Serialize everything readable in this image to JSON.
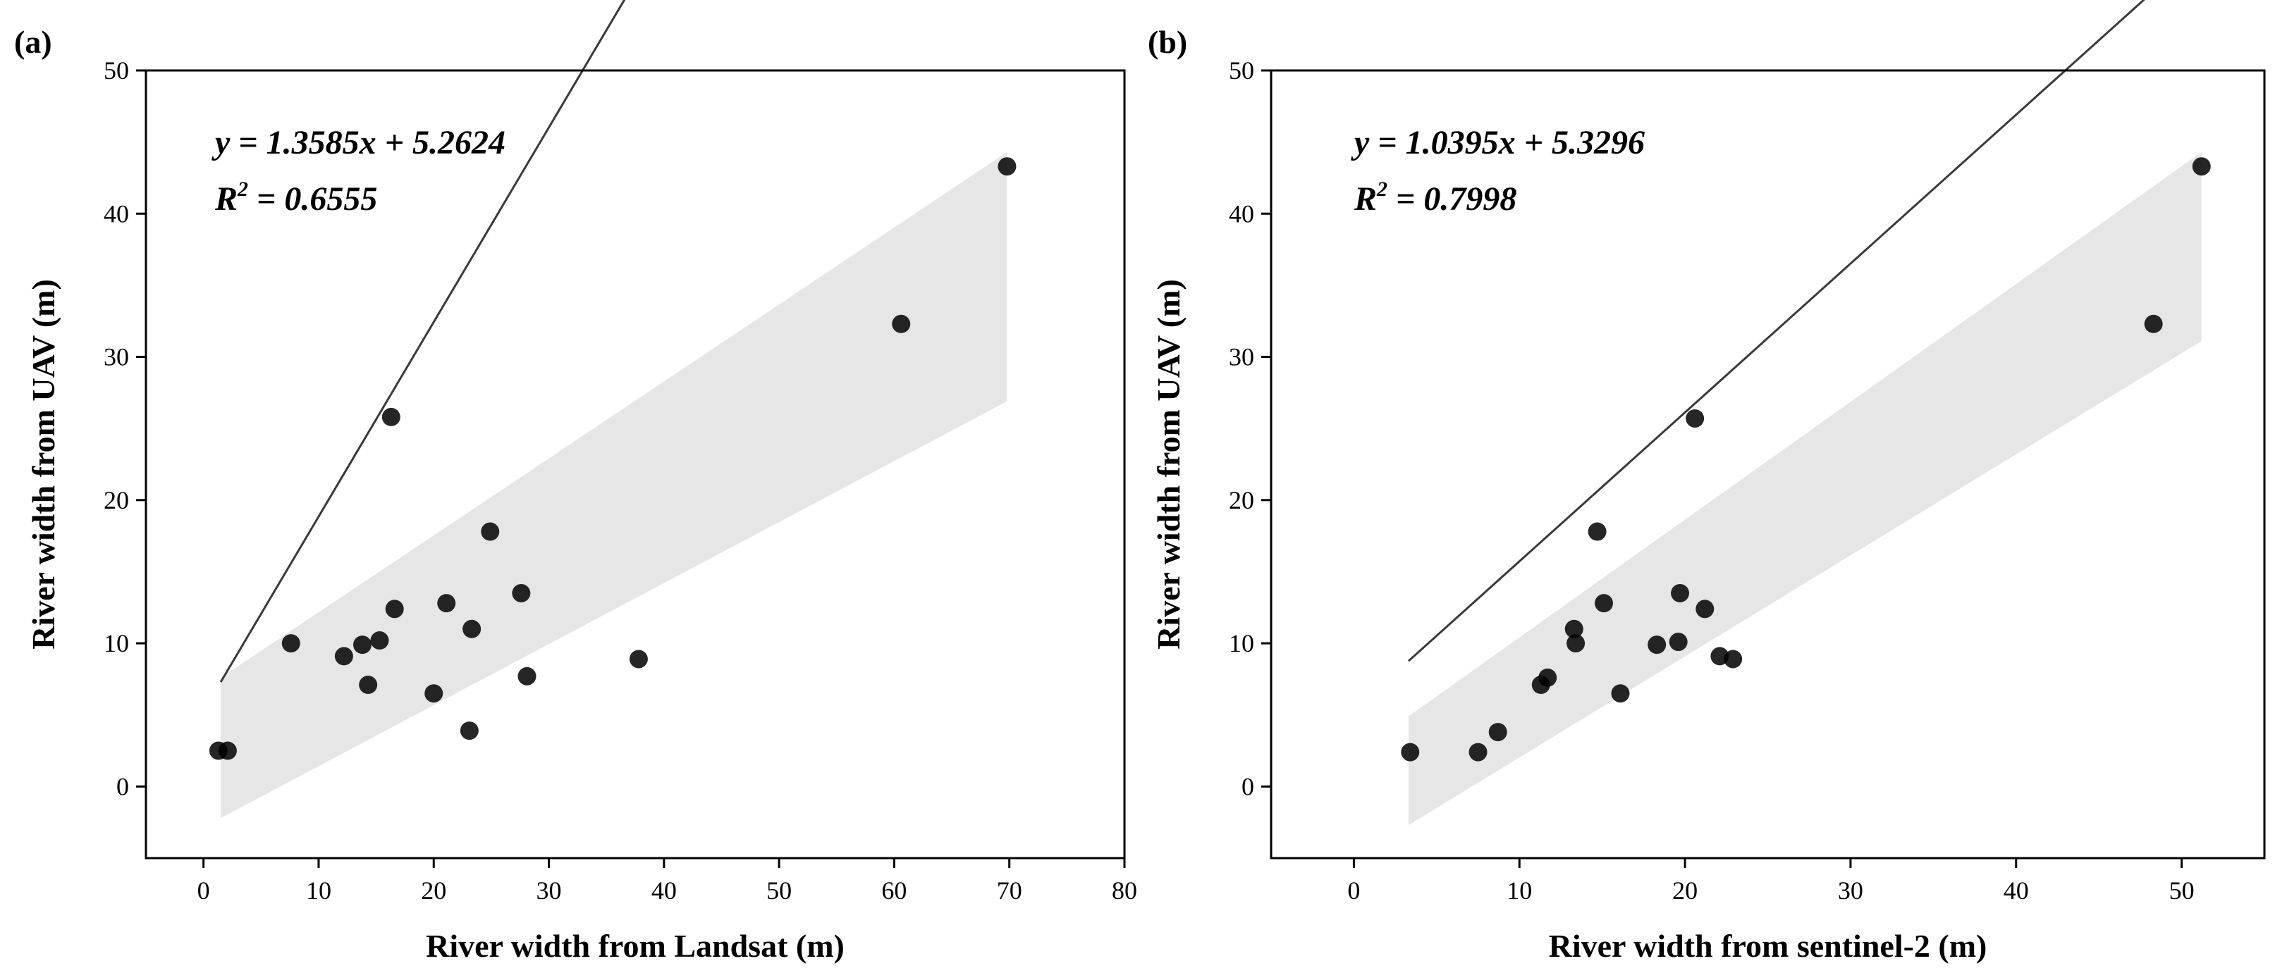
{
  "chart_data": [
    {
      "type": "scatter",
      "panel_label": "(a)",
      "xlabel": "River width from Landsat (m)",
      "ylabel": "River width from UAV (m)",
      "xlim": [
        -5,
        80
      ],
      "ylim": [
        -5,
        50
      ],
      "xticks": [
        0,
        10,
        20,
        30,
        40,
        50,
        60,
        70,
        80
      ],
      "yticks": [
        0,
        10,
        20,
        30,
        40,
        50
      ],
      "equation": "y = 1.3585x + 5.2624",
      "r2_prefix": "R",
      "r2_exp": "2",
      "r2_value": " = 0.6555",
      "fit": {
        "slope": 1.3585,
        "intercept": 5.2624,
        "x_range": [
          1.5,
          69.8
        ]
      },
      "confidence_band": {
        "x": [
          1.5,
          69.8
        ],
        "upper": [
          7.6,
          44.3
        ],
        "lower": [
          -2.2,
          26.9
        ]
      },
      "points": {
        "x": [
          1.3,
          2.1,
          7.6,
          12.2,
          13.8,
          14.3,
          15.3,
          16.3,
          16.6,
          20.0,
          21.1,
          23.1,
          23.3,
          24.9,
          27.6,
          28.1,
          37.8,
          60.6,
          69.8
        ],
        "y": [
          2.5,
          2.5,
          10.0,
          9.1,
          9.9,
          7.1,
          10.2,
          25.8,
          12.4,
          6.5,
          12.8,
          3.9,
          11.0,
          17.8,
          13.5,
          7.7,
          8.9,
          32.3,
          43.3
        ]
      },
      "grid": false
    },
    {
      "type": "scatter",
      "panel_label": "(b)",
      "xlabel": "River width from sentinel-2 (m)",
      "ylabel": "River width from UAV (m)",
      "xlim": [
        -5,
        55
      ],
      "ylim": [
        -5,
        50
      ],
      "xticks": [
        0,
        10,
        20,
        30,
        40,
        50
      ],
      "yticks": [
        0,
        10,
        20,
        30,
        40,
        50
      ],
      "equation": "y = 1.0395x + 5.3296",
      "r2_prefix": "R",
      "r2_exp": "2",
      "r2_value": " = 0.7998",
      "fit": {
        "slope": 1.0395,
        "intercept": 5.3296,
        "x_range": [
          3.3,
          51.2
        ]
      },
      "confidence_band": {
        "x": [
          3.3,
          51.2
        ],
        "upper": [
          4.9,
          44.3
        ],
        "lower": [
          -2.7,
          31.1
        ]
      },
      "points": {
        "x": [
          3.4,
          7.5,
          8.7,
          11.3,
          11.7,
          13.3,
          13.4,
          14.7,
          15.1,
          16.1,
          18.3,
          19.6,
          19.7,
          20.6,
          21.2,
          22.1,
          22.9,
          48.3,
          51.2
        ],
        "y": [
          2.4,
          2.4,
          3.8,
          7.1,
          7.6,
          11.0,
          10.0,
          17.8,
          12.8,
          6.5,
          9.9,
          10.1,
          13.5,
          25.7,
          12.4,
          9.1,
          8.9,
          32.3,
          43.3
        ]
      },
      "grid": false
    }
  ]
}
